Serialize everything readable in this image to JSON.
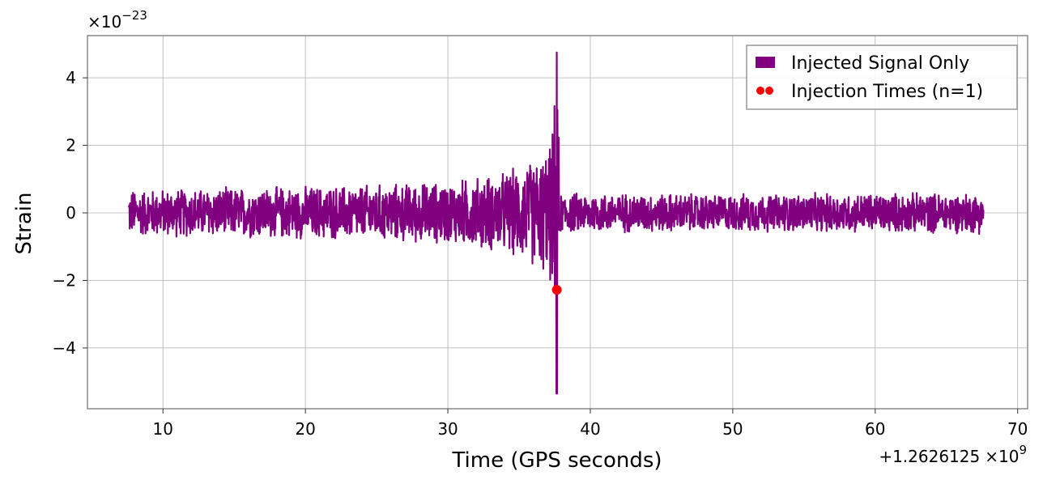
{
  "chart_data": {
    "type": "line",
    "xlabel": "Time (GPS seconds)",
    "ylabel": "Strain",
    "x_offset_label": "+1.2626125",
    "x_offset_times": "×10",
    "x_offset_exp": "9",
    "y_scale_prefix": "×10",
    "y_scale_exp": "−23",
    "xlim": [
      4.7,
      70.7
    ],
    "ylim": [
      -5.8,
      5.25
    ],
    "x_ticks": [
      10,
      20,
      30,
      40,
      50,
      60,
      70
    ],
    "x_tick_labels": [
      "10",
      "20",
      "30",
      "40",
      "50",
      "60",
      "70"
    ],
    "y_ticks": [
      -4,
      -2,
      0,
      2,
      4
    ],
    "y_tick_labels": [
      "−4",
      "−2",
      "0",
      "2",
      "4"
    ],
    "grid": true,
    "legend_position": "top-right",
    "series": [
      {
        "name": "Injected Signal Only",
        "kind": "line",
        "color": "#800080",
        "x_start": 7.6,
        "x_end": 67.6,
        "peak_time": 37.65,
        "envelope": [
          {
            "x": 7.6,
            "amp": 0.75
          },
          {
            "x": 15.0,
            "amp": 0.8
          },
          {
            "x": 25.0,
            "amp": 0.9
          },
          {
            "x": 30.0,
            "amp": 1.0
          },
          {
            "x": 34.0,
            "amp": 1.3
          },
          {
            "x": 36.5,
            "amp": 1.8
          },
          {
            "x": 37.3,
            "amp": 2.3
          },
          {
            "x": 37.65,
            "amp": 4.75
          },
          {
            "x": 37.9,
            "amp": 0.65
          },
          {
            "x": 50.0,
            "amp": 0.6
          },
          {
            "x": 67.6,
            "amp": 0.65
          }
        ],
        "peak_max": 4.75,
        "peak_min": -5.35
      },
      {
        "name": "Injection Times (n=1)",
        "kind": "scatter",
        "color": "#ff0000",
        "points": [
          {
            "x": 37.65,
            "y": -2.28
          }
        ]
      }
    ]
  }
}
